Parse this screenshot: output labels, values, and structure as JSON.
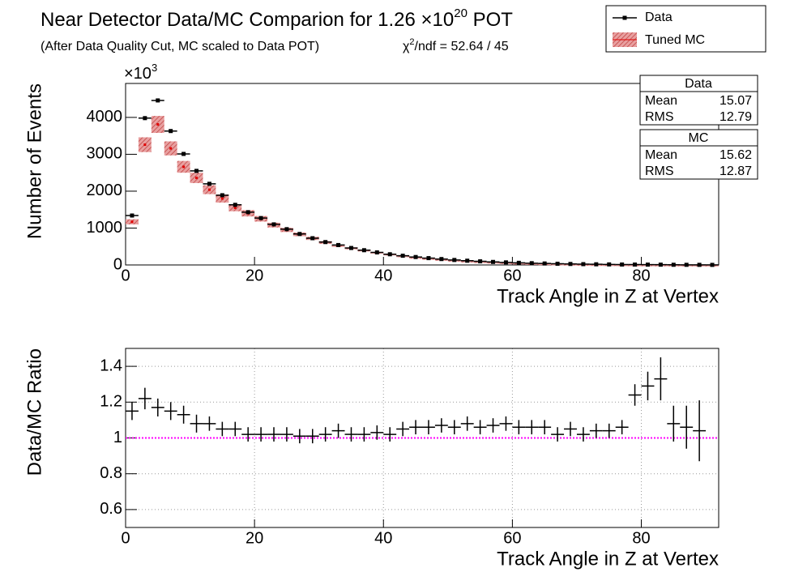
{
  "chart_data": [
    {
      "type": "hist_points",
      "title": [
        "Near Detector Data/MC Comparion for 1.26 ×10",
        "20",
        " POT"
      ],
      "subtitle": "(After Data Quality Cut, MC scaled to Data POT)",
      "chi2": [
        "χ",
        "2",
        "/ndf = 52.64 / 45"
      ],
      "multiplier": [
        "×10",
        "3"
      ],
      "x_label": "Track Angle in Z at Vertex",
      "y_label": "Number of Events",
      "x": [
        1,
        3,
        5,
        7,
        9,
        11,
        13,
        15,
        17,
        19,
        21,
        23,
        25,
        27,
        29,
        31,
        33,
        35,
        37,
        39,
        41,
        43,
        45,
        47,
        49,
        51,
        53,
        55,
        57,
        59,
        61,
        63,
        65,
        67,
        69,
        71,
        73,
        75,
        77,
        79,
        81,
        83,
        85,
        87,
        89,
        91
      ],
      "xlim": [
        0,
        92
      ],
      "xticks": [
        0,
        20,
        40,
        60,
        80
      ],
      "ylim": [
        0,
        4920
      ],
      "yticks": [
        0,
        1000,
        2000,
        3000,
        4000
      ],
      "series": [
        {
          "name": "Data",
          "color": "#000000",
          "values": [
            1340,
            3980,
            4460,
            3630,
            3010,
            2550,
            2200,
            1890,
            1630,
            1430,
            1270,
            1100,
            970,
            840,
            725,
            620,
            540,
            460,
            400,
            340,
            290,
            250,
            215,
            185,
            160,
            135,
            115,
            98,
            82,
            70,
            58,
            48,
            40,
            33,
            27,
            22,
            18,
            15,
            12,
            11,
            9,
            8,
            5,
            4,
            3,
            2
          ]
        },
        {
          "name": "Tuned MC",
          "color": "#e00000",
          "values": [
            1170,
            3260,
            3810,
            3160,
            2660,
            2360,
            2040,
            1800,
            1550,
            1400,
            1250,
            1080,
            950,
            830,
            720,
            610,
            520,
            450,
            390,
            330,
            285,
            240,
            200,
            175,
            150,
            127,
            106,
            92,
            77,
            65,
            55,
            45,
            38,
            32,
            26,
            22,
            17,
            14,
            11,
            9,
            7,
            6,
            5,
            4,
            3,
            2
          ],
          "errors": [
            70,
            200,
            230,
            190,
            160,
            140,
            120,
            110,
            95,
            85,
            75,
            65,
            57,
            50,
            43,
            37,
            31,
            27,
            23,
            20,
            17,
            15,
            12,
            10,
            9,
            8,
            6,
            5,
            5,
            4,
            3,
            3,
            2,
            2,
            2,
            1,
            1,
            1,
            1,
            1,
            1,
            1,
            1,
            1,
            1,
            1
          ]
        }
      ],
      "stats": [
        {
          "title": "Data",
          "rows": [
            [
              "Mean",
              "15.07"
            ],
            [
              "RMS",
              "12.79"
            ]
          ],
          "color": "#000000"
        },
        {
          "title": "MC",
          "rows": [
            [
              "Mean",
              "15.62"
            ],
            [
              "RMS",
              "12.87"
            ]
          ],
          "color": "#e00000"
        }
      ]
    },
    {
      "type": "ratio",
      "x_label": "Track Angle in Z at Vertex",
      "y_label": "Data/MC Ratio",
      "x": [
        1,
        3,
        5,
        7,
        9,
        11,
        13,
        15,
        17,
        19,
        21,
        23,
        25,
        27,
        29,
        31,
        33,
        35,
        37,
        39,
        41,
        43,
        45,
        47,
        49,
        51,
        53,
        55,
        57,
        59,
        61,
        63,
        65,
        67,
        69,
        71,
        73,
        75,
        77,
        79,
        81,
        83,
        85,
        87,
        89,
        91
      ],
      "xlim": [
        0,
        92
      ],
      "xticks": [
        0,
        20,
        40,
        60,
        80
      ],
      "ylim": [
        0.5,
        1.5
      ],
      "yticks": [
        0.6,
        0.8,
        1,
        1.2,
        1.4
      ],
      "grid": true,
      "reference_line": 1,
      "reference_color": "#ff00ff",
      "values": [
        1.15,
        1.22,
        1.17,
        1.15,
        1.13,
        1.08,
        1.08,
        1.05,
        1.05,
        1.02,
        1.02,
        1.02,
        1.02,
        1.01,
        1.01,
        1.02,
        1.04,
        1.02,
        1.02,
        1.03,
        1.02,
        1.05,
        1.06,
        1.06,
        1.07,
        1.06,
        1.08,
        1.06,
        1.07,
        1.08,
        1.06,
        1.06,
        1.06,
        1.02,
        1.05,
        1.02,
        1.04,
        1.04,
        1.06,
        1.24,
        1.29,
        1.33,
        1.08,
        1.06,
        1.04,
        null
      ],
      "errors": [
        0.05,
        0.06,
        0.05,
        0.05,
        0.05,
        0.05,
        0.04,
        0.04,
        0.04,
        0.04,
        0.04,
        0.04,
        0.04,
        0.04,
        0.04,
        0.04,
        0.04,
        0.04,
        0.04,
        0.04,
        0.04,
        0.04,
        0.04,
        0.04,
        0.04,
        0.04,
        0.04,
        0.04,
        0.04,
        0.04,
        0.04,
        0.04,
        0.04,
        0.04,
        0.04,
        0.04,
        0.04,
        0.04,
        0.04,
        0.06,
        0.08,
        0.12,
        0.1,
        0.12,
        0.17,
        null
      ]
    }
  ]
}
